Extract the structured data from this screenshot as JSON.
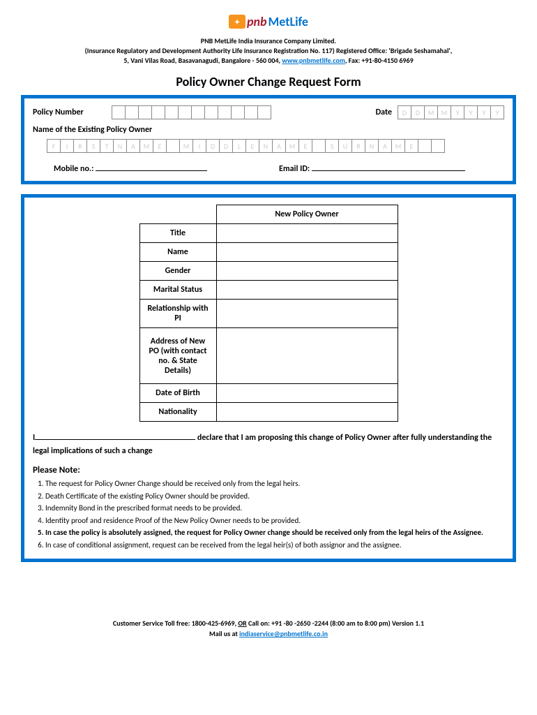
{
  "logo": {
    "pnb": "pnb",
    "metlife": "MetLife"
  },
  "header": {
    "line1": "PNB MetLife India Insurance Company Limited.",
    "line2a": "(Insurance Regulatory and Development Authority Life Insurance Registration No. 117) Registered Office: 'Brigade Seshamahal',",
    "line3a": "5, Vani Vilas Road, Basavanagudi, Bangalore - 560 004, ",
    "link": "www.pnbmetlife.com",
    "line3b": ", Fax: +91-80-4150 6969"
  },
  "title": "Policy Owner Change Request Form",
  "section1": {
    "policy_number_label": "Policy Number",
    "policy_boxes": [
      "",
      "",
      "",
      "",
      "",
      "",
      "",
      "",
      "",
      "",
      "",
      ""
    ],
    "date_label": "Date",
    "date_placeholders": [
      "D",
      "D",
      "M",
      "M",
      "Y",
      "Y",
      "Y",
      "Y"
    ],
    "existing_owner_label": "Name of the Existing Policy Owner",
    "name_placeholders": [
      "F",
      "I",
      "R",
      "S",
      "T",
      "N",
      "A",
      "M",
      "E",
      "",
      "M",
      "I",
      "D",
      "D",
      "L",
      "E",
      "N",
      "A",
      "M",
      "E",
      "",
      "S",
      "U",
      "R",
      "N",
      "A",
      "M",
      "E",
      "",
      ""
    ],
    "mobile_label": "Mobile no.:",
    "email_label": "Email ID:"
  },
  "section2": {
    "table_header": "New Policy Owner",
    "rows": [
      {
        "label": "Title"
      },
      {
        "label": "Name"
      },
      {
        "label": "Gender"
      },
      {
        "label": "Marital Status"
      },
      {
        "label": "Relationship with PI"
      },
      {
        "label": "Address of New PO (with contact no. & State Details)"
      },
      {
        "label": "Date of Birth"
      },
      {
        "label": "Nationality"
      }
    ],
    "declaration_pre": "I",
    "declaration_post": " declare that I am proposing this change of Policy Owner after fully understanding the legal implications of such a change",
    "note_header": "Please Note:",
    "notes": [
      {
        "text": "The request for Policy Owner Change should be received only from the legal heirs.",
        "bold": false
      },
      {
        "text": "Death Certificate of the existing Policy Owner should be provided.",
        "bold": false
      },
      {
        "text": "Indemnity Bond in the prescribed format needs to be provided.",
        "bold": false
      },
      {
        "text": "Identity proof and residence Proof of the New Policy Owner needs to be provided.",
        "bold": false
      },
      {
        "text": "In case the policy is absolutely assigned, the request for Policy Owner change should be received only from the legal heirs of the Assignee.",
        "bold": true
      },
      {
        "text": "In case of conditional assignment, request can be received from the legal heir(s) of both assignor and the assignee.",
        "bold": false
      }
    ]
  },
  "footer": {
    "line1a": "Customer Service Toll free: 1800-425-6969, ",
    "or": "OR",
    "line1b": " Call on: +91 -80 -2650 -2244 (8:00 am to 8:00 pm)        Version 1.1",
    "line2a": "Mail us at ",
    "email": "indiaservice@pnbmetlife.co.in"
  },
  "colors": {
    "blue": "#0073cf",
    "maroon": "#a6192e",
    "orange": "#f7941e",
    "placeholder": "#cccccc"
  }
}
